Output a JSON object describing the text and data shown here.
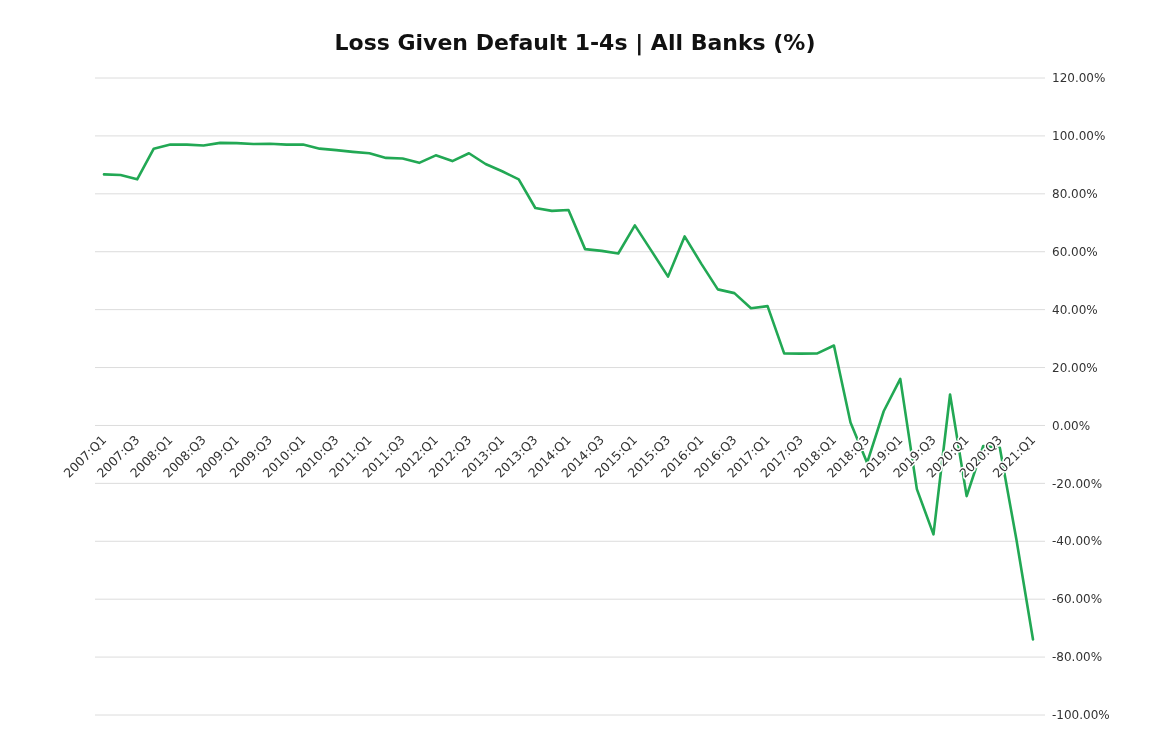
{
  "chart_data": {
    "type": "line",
    "title": "Loss Given Default 1-4s | All Banks (%)",
    "categories": [
      "2007:Q1",
      null,
      "2007:Q3",
      null,
      "2008:Q1",
      null,
      "2008:Q3",
      null,
      "2009:Q1",
      null,
      "2009:Q3",
      null,
      "2010:Q1",
      null,
      "2010:Q3",
      null,
      "2011:Q1",
      null,
      "2011:Q3",
      null,
      "2012:Q1",
      null,
      "2012:Q3",
      null,
      "2013:Q1",
      null,
      "2013:Q3",
      null,
      "2014:Q1",
      null,
      "2014:Q3",
      null,
      "2015:Q1",
      null,
      "2015:Q3",
      null,
      "2016:Q1",
      null,
      "2016:Q3",
      null,
      "2017:Q1",
      null,
      "2017:Q3",
      null,
      "2018:Q1",
      null,
      "2018:Q3",
      null,
      "2019:Q1",
      null,
      "2019:Q3",
      null,
      "2020:Q1",
      null,
      "2020:Q3",
      null,
      "2021:Q1"
    ],
    "series": [
      {
        "color": "#22a854",
        "values": [
          86.7,
          86.5,
          85,
          95.6,
          97,
          97,
          96.7,
          97.6,
          97.5,
          97.2,
          97.3,
          97,
          97,
          95.6,
          95.1,
          94.5,
          94,
          92.4,
          92.2,
          90.7,
          93.3,
          91.3,
          94,
          90.3,
          87.8,
          85,
          75.1,
          74.1,
          74.4,
          60.9,
          60.3,
          59.4,
          69.1,
          60.3,
          51.4,
          65.3,
          55.9,
          47,
          45.7,
          40.5,
          41.2,
          24.9,
          24.8,
          24.9,
          27.6,
          1,
          -12.9,
          4.9,
          16.1,
          -22,
          -37.6,
          10.7,
          -24.4,
          -7.1,
          -7.7,
          -39.4,
          -73.9
        ]
      }
    ],
    "ylim": [
      -100,
      120
    ],
    "yticks": [
      {
        "value": -100,
        "label": "-100.00%"
      },
      {
        "value": -80,
        "label": "-80.00%"
      },
      {
        "value": -60,
        "label": "-60.00%"
      },
      {
        "value": -40,
        "label": "-40.00%"
      },
      {
        "value": -20,
        "label": "-20.00%"
      },
      {
        "value": 0,
        "label": "0.00%"
      },
      {
        "value": 20,
        "label": "20.00%"
      },
      {
        "value": 40,
        "label": "40.00%"
      },
      {
        "value": 60,
        "label": "60.00%"
      },
      {
        "value": 80,
        "label": "80.00%"
      },
      {
        "value": 100,
        "label": "100.00%"
      },
      {
        "value": 120,
        "label": "120.00%"
      }
    ],
    "grid": "y",
    "line_style": "solid"
  }
}
